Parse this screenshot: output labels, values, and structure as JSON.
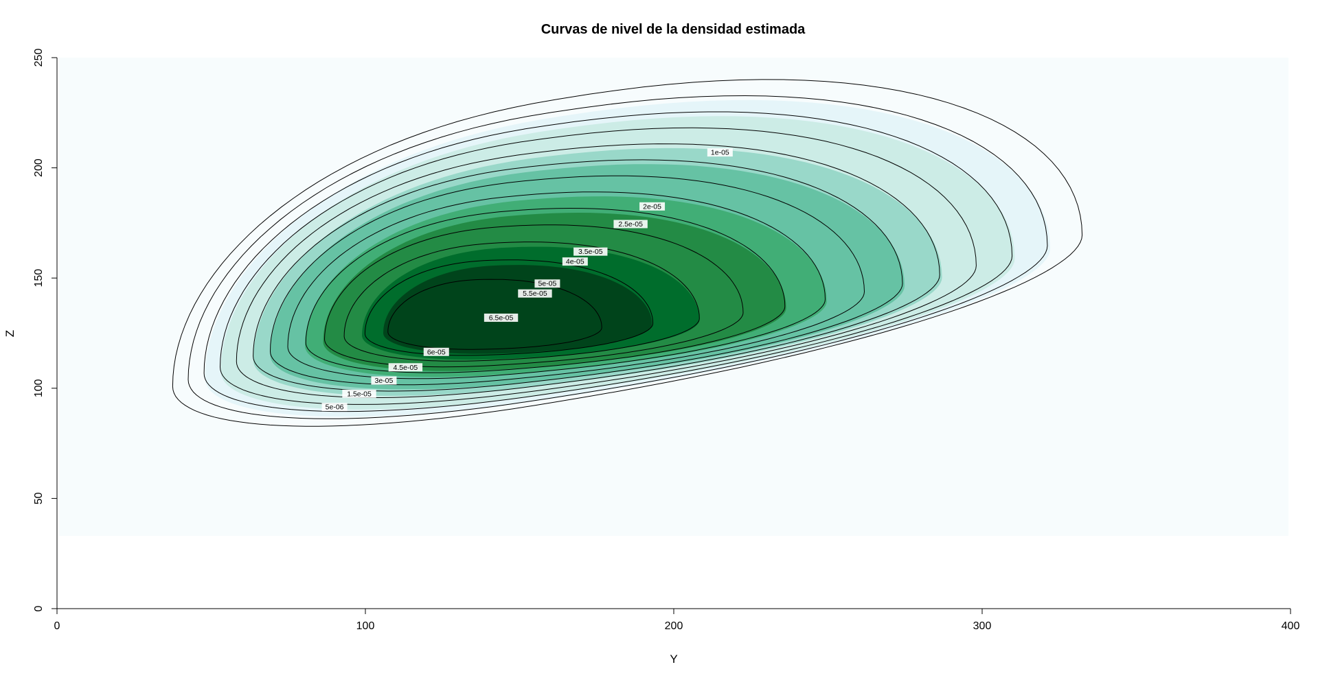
{
  "chart_data": {
    "type": "contour",
    "title": "Curvas de nivel de la densidad estimada",
    "xlabel": "Y",
    "ylabel": "Z",
    "xlim": [
      0,
      400
    ],
    "ylim": [
      0,
      250
    ],
    "xticks": [
      0,
      100,
      200,
      300,
      400
    ],
    "yticks": [
      0,
      50,
      100,
      150,
      200,
      250
    ],
    "fill_region": {
      "x": [
        0,
        400
      ],
      "y": [
        33,
        250
      ]
    },
    "density_peak": {
      "y": 135,
      "z": 126
    },
    "contour_levels": [
      {
        "level": 5e-06,
        "label": "5e-06",
        "label_at": [
          90,
          91.5
        ]
      },
      {
        "level": 1e-05,
        "label": "1e-05",
        "label_at": [
          215,
          207
        ]
      },
      {
        "level": 1.5e-05,
        "label": "1.5e-05",
        "label_at": [
          98,
          97.5
        ]
      },
      {
        "level": 2e-05,
        "label": "2e-05",
        "label_at": [
          193,
          182.5
        ]
      },
      {
        "level": 2.5e-05,
        "label": "2.5e-05",
        "label_at": [
          186,
          174.5
        ]
      },
      {
        "level": 3e-05,
        "label": "3e-05",
        "label_at": [
          106,
          103.5
        ]
      },
      {
        "level": 3.5e-05,
        "label": "3.5e-05",
        "label_at": [
          173,
          162
        ]
      },
      {
        "level": 4e-05,
        "label": "4e-05",
        "label_at": [
          168,
          157.5
        ]
      },
      {
        "level": 4.5e-05,
        "label": "4.5e-05",
        "label_at": [
          113,
          109.5
        ]
      },
      {
        "level": 5e-05,
        "label": "5e-05",
        "label_at": [
          159,
          147.5
        ]
      },
      {
        "level": 5.5e-05,
        "label": "5.5e-05",
        "label_at": [
          155,
          143
        ]
      },
      {
        "level": 6e-05,
        "label": "6e-05",
        "label_at": [
          123,
          116.5
        ]
      },
      {
        "level": 6.5e-05,
        "label": "6.5e-05",
        "label_at": [
          144,
          132
        ]
      }
    ],
    "fill_colors": [
      "#f7fcfd",
      "#e5f5f9",
      "#ccece6",
      "#99d8c9",
      "#66c2a4",
      "#41ae76",
      "#238b45",
      "#006d2c",
      "#00441b"
    ]
  }
}
